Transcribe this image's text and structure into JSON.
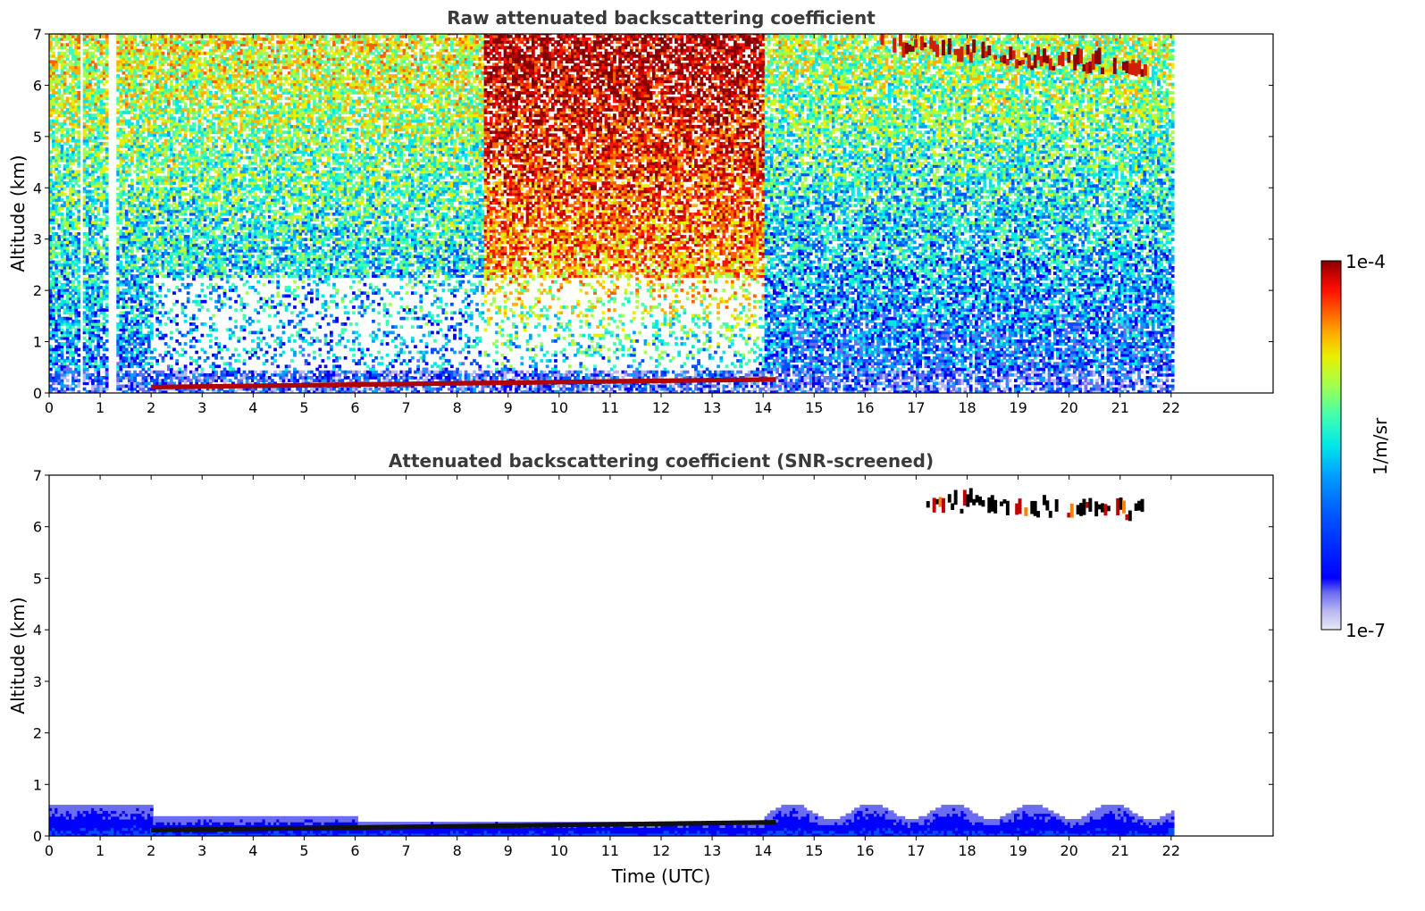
{
  "chart_data": [
    {
      "type": "heatmap",
      "title": "Raw attenuated backscattering coefficient",
      "xlabel": "",
      "ylabel": "Altitude (km)",
      "xlim": [
        0,
        24
      ],
      "ylim": [
        0,
        7
      ],
      "x_ticks": [
        0,
        1,
        2,
        3,
        4,
        5,
        6,
        7,
        8,
        9,
        10,
        11,
        12,
        13,
        14,
        15,
        16,
        17,
        18,
        19,
        20,
        21,
        22
      ],
      "y_ticks": [
        0,
        1,
        2,
        3,
        4,
        5,
        6,
        7
      ],
      "data_time_range": [
        0,
        22
      ],
      "features": {
        "surface_layer": {
          "t_start": 0,
          "t_end": 22,
          "top_km": 0.4
        },
        "strong_low_layer": {
          "t_start": 2,
          "t_end": 14.2,
          "alt_km": [
            0.1,
            0.25
          ]
        },
        "cirrus": {
          "t_start": 16.3,
          "t_end": 21.5,
          "alt_km": [
            6.2,
            7.0
          ]
        },
        "data_gaps_h": [
          0.6,
          1.15,
          1.25
        ]
      }
    },
    {
      "type": "heatmap",
      "title": "Attenuated backscattering coefficient (SNR-screened)",
      "xlabel": "Time (UTC)",
      "ylabel": "Altitude (km)",
      "xlim": [
        0,
        24
      ],
      "ylim": [
        0,
        7
      ],
      "x_ticks": [
        0,
        1,
        2,
        3,
        4,
        5,
        6,
        7,
        8,
        9,
        10,
        11,
        12,
        13,
        14,
        15,
        16,
        17,
        18,
        19,
        20,
        21,
        22
      ],
      "y_ticks": [
        0,
        1,
        2,
        3,
        4,
        5,
        6,
        7
      ],
      "data_time_range": [
        0,
        22
      ],
      "features": {
        "boundary_layer": {
          "t_start": 0,
          "t_end": 22,
          "top_km": [
            0.2,
            0.6
          ]
        },
        "strong_low_layer": {
          "t_start": 2,
          "t_end": 14.2,
          "alt_km": [
            0.1,
            0.25
          ]
        },
        "cirrus": {
          "t_start": 17.2,
          "t_end": 21.5,
          "alt_km": [
            6.2,
            6.7
          ]
        }
      }
    }
  ],
  "colorbar": {
    "label": "1/m/sr",
    "max_label": "1e-4",
    "min_label": "1e-7",
    "colormap": [
      "#e8e8f8",
      "#b8b8f0",
      "#6c6cf0",
      "#0000ff",
      "#0050ff",
      "#00a0ff",
      "#00e8e8",
      "#40ffb0",
      "#a0ff50",
      "#e8f000",
      "#ffb000",
      "#ff6000",
      "#ff1000",
      "#c00000",
      "#800000"
    ]
  }
}
